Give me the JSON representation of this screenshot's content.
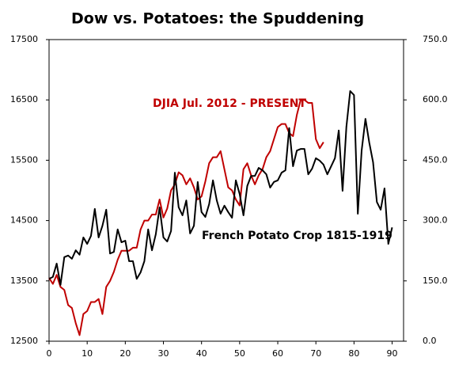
{
  "chart_data": {
    "type": "line",
    "title": "Dow vs. Potatoes: the Spuddening",
    "annotations": [
      "DJIA Jul. 2012 - PRESENT",
      "French Potato Crop 1815-1919"
    ],
    "xlim": [
      0,
      93
    ],
    "xticks": [
      0,
      10,
      20,
      30,
      40,
      50,
      60,
      70,
      80,
      90
    ],
    "ylim": [
      12500,
      17500
    ],
    "yticks": [
      12500,
      13500,
      14500,
      15500,
      16500,
      17500
    ],
    "y2lim": [
      0,
      750
    ],
    "y2ticks": [
      {
        "value": 0,
        "label": "0.0"
      },
      {
        "value": 150,
        "label": "150.0"
      },
      {
        "value": 300,
        "label": "300.0"
      },
      {
        "value": 450,
        "label": "450.0"
      },
      {
        "value": 600,
        "label": "600.0"
      },
      {
        "value": 750,
        "label": "750.0"
      }
    ],
    "series": [
      {
        "color": "#c00000",
        "x": [
          0,
          1,
          2,
          3,
          4,
          5,
          6,
          7,
          8,
          9,
          10,
          11,
          12,
          13,
          14,
          15,
          16,
          17,
          18,
          19,
          20,
          21,
          22,
          23,
          24,
          25,
          26,
          27,
          28,
          29,
          30,
          31,
          32,
          33,
          34,
          35,
          36,
          37,
          38,
          39,
          40,
          41,
          42,
          43,
          44,
          45,
          46,
          47,
          48,
          49,
          50,
          51,
          52,
          53,
          54,
          55,
          56,
          57,
          58,
          59,
          60,
          61,
          62,
          63,
          64,
          65,
          66,
          67,
          68,
          69,
          70,
          71,
          72
        ],
        "values": [
          13550,
          13450,
          13600,
          13400,
          13350,
          13100,
          13050,
          12800,
          12600,
          12950,
          13000,
          13150,
          13150,
          13200,
          12950,
          13400,
          13500,
          13650,
          13850,
          14000,
          14000,
          14000,
          14050,
          14050,
          14350,
          14500,
          14500,
          14600,
          14600,
          14850,
          14550,
          14700,
          15000,
          15100,
          15300,
          15250,
          15100,
          15200,
          15050,
          14850,
          14900,
          15150,
          15450,
          15550,
          15550,
          15650,
          15350,
          15050,
          15000,
          14850,
          14750,
          15350,
          15450,
          15250,
          15100,
          15250,
          15350,
          15550,
          15650,
          15850,
          16050,
          16100,
          16100,
          15950,
          15900,
          16250,
          16500,
          16500,
          16450,
          16450,
          15850,
          15700,
          15800
        ]
      },
      {
        "color": "#000000",
        "axis": "y2",
        "x": [
          0,
          1,
          2,
          3,
          4,
          5,
          6,
          7,
          8,
          9,
          10,
          11,
          12,
          13,
          14,
          15,
          16,
          17,
          18,
          19,
          20,
          21,
          22,
          23,
          24,
          25,
          26,
          27,
          28,
          29,
          30,
          31,
          32,
          33,
          34,
          35,
          36,
          37,
          38,
          39,
          40,
          41,
          42,
          43,
          44,
          45,
          46,
          47,
          48,
          49,
          50,
          51,
          52,
          53,
          54,
          55,
          56,
          57,
          58,
          59,
          60,
          61,
          62,
          63,
          64,
          65,
          66,
          67,
          68,
          69,
          70,
          71,
          72,
          73,
          74,
          75,
          76,
          77,
          78,
          79,
          80,
          81,
          82,
          83,
          84,
          85,
          86,
          87,
          88,
          89,
          90
        ],
        "values": [
          155,
          160,
          193,
          140,
          209,
          213,
          205,
          226,
          215,
          258,
          242,
          262,
          329,
          258,
          287,
          327,
          218,
          222,
          278,
          246,
          250,
          199,
          199,
          155,
          171,
          199,
          278,
          226,
          266,
          333,
          258,
          248,
          274,
          419,
          333,
          313,
          350,
          268,
          287,
          396,
          321,
          309,
          341,
          400,
          350,
          317,
          337,
          321,
          307,
          400,
          366,
          313,
          386,
          411,
          411,
          431,
          425,
          415,
          382,
          396,
          400,
          419,
          425,
          530,
          435,
          474,
          478,
          478,
          415,
          429,
          455,
          449,
          439,
          415,
          435,
          455,
          524,
          374,
          533,
          622,
          612,
          317,
          474,
          553,
          494,
          445,
          346,
          327,
          380,
          242,
          283
        ]
      }
    ]
  }
}
